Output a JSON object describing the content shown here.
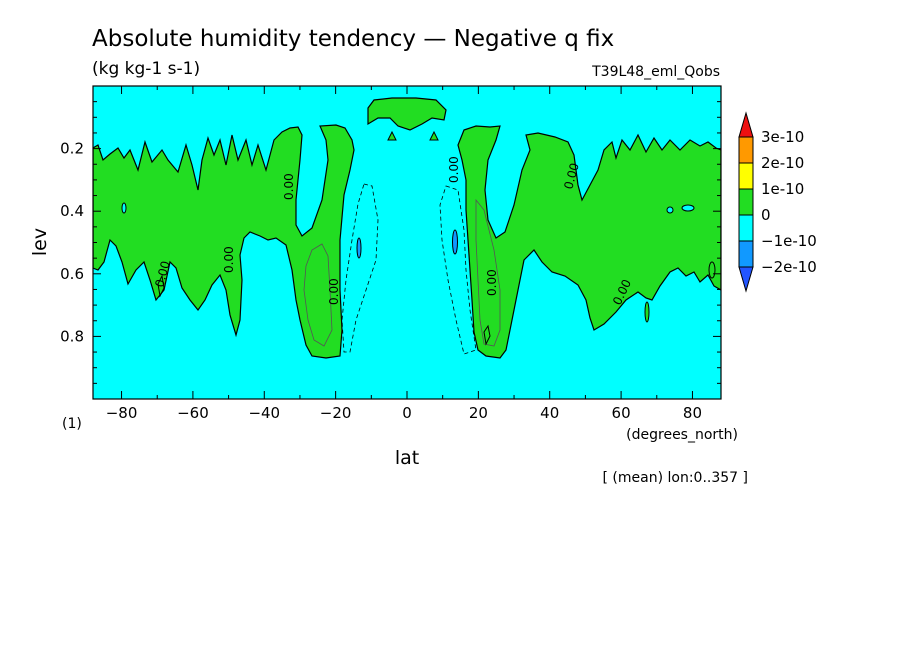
{
  "chart_data": {
    "type": "contour",
    "title": "Absolute humidity tendency — Negative q fix",
    "subtitle": "(kg kg-1 s-1)",
    "run_label": "T39L48_eml_Qobs",
    "xlabel": "lat",
    "x_unit": "(degrees_north)",
    "ylabel": "lev",
    "y_unit": "(1)",
    "footnote": "[ (mean) lon:0..357 ]",
    "xlim": [
      -88,
      88
    ],
    "ylim": [
      1.0,
      0.0
    ],
    "y_inverted": true,
    "x_ticks": [
      -80,
      -60,
      -40,
      -20,
      0,
      20,
      40,
      60,
      80
    ],
    "y_ticks": [
      0.2,
      0.4,
      0.6,
      0.8
    ],
    "contour_line_labels": [
      "0.00",
      "0.00",
      "0.00",
      "0.00",
      "0.00",
      "0.00",
      "0.00",
      "0.00"
    ],
    "colorbar": {
      "labels": [
        "3e-10",
        "2e-10",
        "1e-10",
        "0",
        "−1e-10",
        "−2e-10"
      ],
      "colors": [
        "#ee1111",
        "#ff9900",
        "#ffff00",
        "#22dd22",
        "#00ffff",
        "#1199ff",
        "#2255ff"
      ]
    },
    "fields": {
      "background_color": "#00ffff",
      "positive_color": "#22dd22",
      "upper_blob": {
        "lat": [
          -11,
          11
        ],
        "lev": [
          0.04,
          0.14
        ]
      },
      "green_bands": [
        {
          "lat_range": [
            -88,
            -16
          ],
          "lev_upper_edge": [
            [
              -88,
              0.19
            ],
            [
              -70,
              0.22
            ],
            [
              -50,
              0.15
            ],
            [
              -35,
              0.15
            ],
            [
              -25,
              0.13
            ],
            [
              -16,
              0.19
            ]
          ],
          "lev_lower_edge": [
            [
              -88,
              0.52
            ],
            [
              -70,
              0.68
            ],
            [
              -50,
              0.66
            ],
            [
              -38,
              0.55
            ],
            [
              -26,
              0.86
            ],
            [
              -16,
              0.84
            ]
          ]
        },
        {
          "lat_range": [
            13,
            88
          ],
          "lev_upper_edge": [
            [
              13,
              0.14
            ],
            [
              24,
              0.13
            ],
            [
              40,
              0.13
            ],
            [
              55,
              0.19
            ],
            [
              70,
              0.17
            ],
            [
              88,
              0.17
            ]
          ],
          "lev_lower_edge": [
            [
              13,
              0.36
            ],
            [
              20,
              0.86
            ],
            [
              24,
              0.84
            ],
            [
              32,
              0.58
            ],
            [
              55,
              0.76
            ],
            [
              75,
              0.63
            ],
            [
              88,
              0.55
            ]
          ]
        }
      ]
    }
  }
}
